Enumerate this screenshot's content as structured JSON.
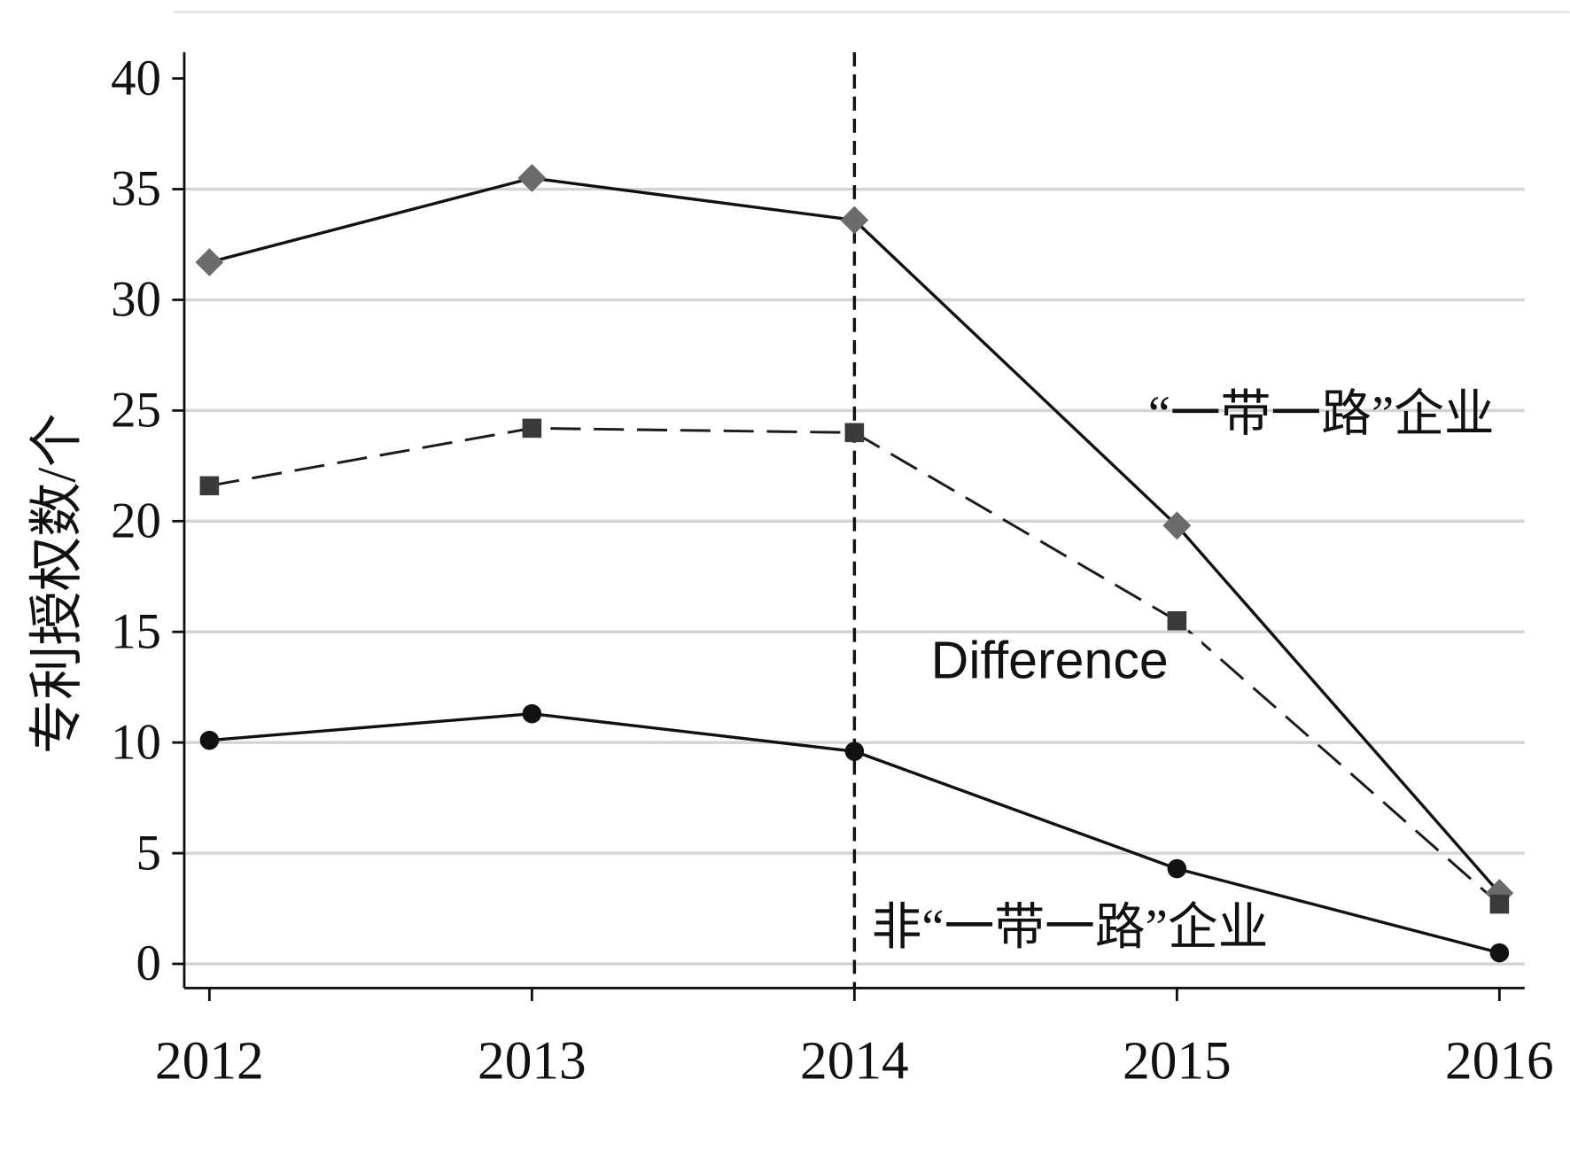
{
  "chart_data": {
    "type": "line",
    "ylabel": "专利授权数/个",
    "x": [
      2012,
      2013,
      2014,
      2015,
      2016
    ],
    "xlim": [
      2012,
      2016
    ],
    "ylim": [
      0,
      40
    ],
    "yticks": [
      0,
      5,
      10,
      15,
      20,
      25,
      30,
      35,
      40
    ],
    "grid": true,
    "reference_line_x": 2014,
    "series": [
      {
        "name": "“一带一路”企业",
        "values": [
          31.7,
          35.5,
          33.6,
          19.8,
          3.2
        ],
        "marker": "diamond",
        "marker_color": "#6b6b6b",
        "line_color": "#111111",
        "line_style": "solid"
      },
      {
        "name": "Difference",
        "values": [
          21.6,
          24.2,
          24.0,
          15.5,
          2.7
        ],
        "marker": "square",
        "marker_color": "#3a3a3a",
        "line_color": "#1a1a1a",
        "line_style": "dashed"
      },
      {
        "name": "非“一带一路”企业",
        "values": [
          10.1,
          11.3,
          9.6,
          4.3,
          0.5
        ],
        "marker": "circle",
        "marker_color": "#111111",
        "line_color": "#111111",
        "line_style": "solid"
      }
    ]
  }
}
